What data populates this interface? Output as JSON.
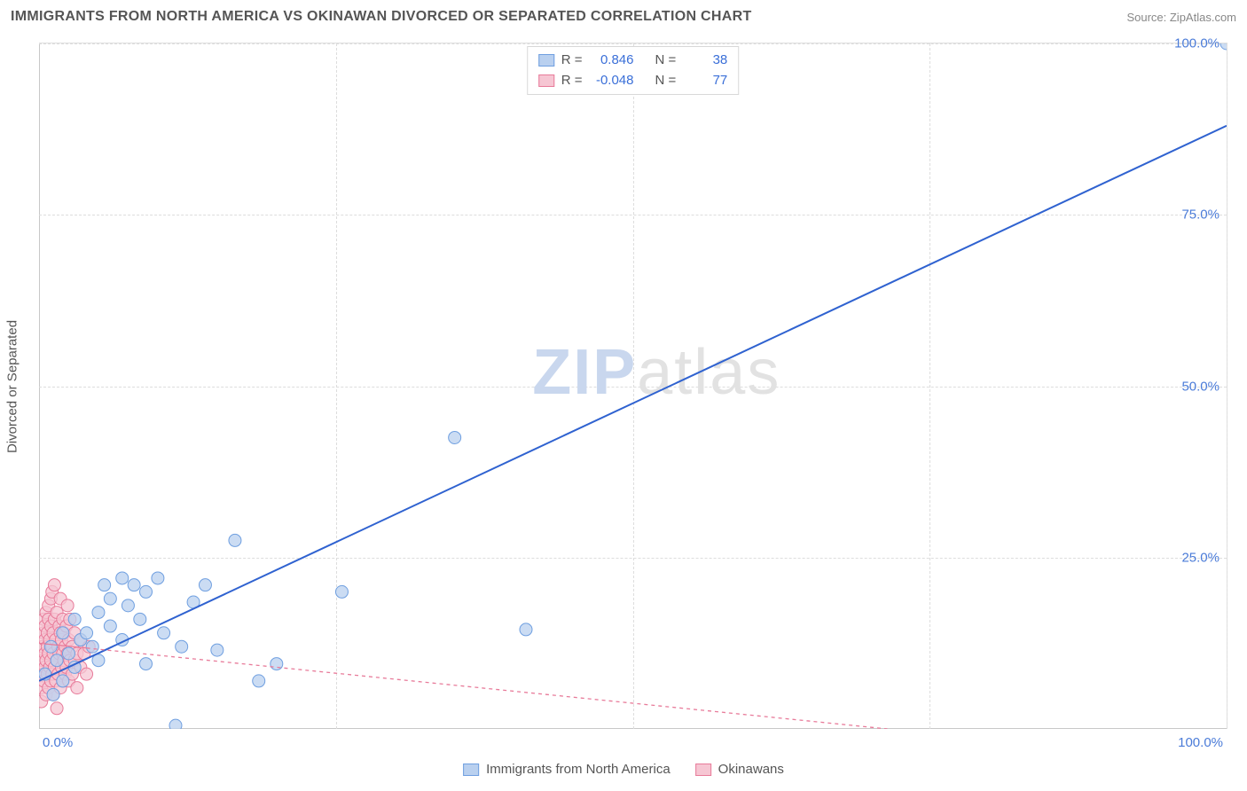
{
  "header": {
    "title": "IMMIGRANTS FROM NORTH AMERICA VS OKINAWAN DIVORCED OR SEPARATED CORRELATION CHART",
    "source": "Source: ZipAtlas.com"
  },
  "watermark": {
    "part1": "ZIP",
    "part2": "atlas"
  },
  "chart": {
    "type": "scatter",
    "y_label": "Divorced or Separated",
    "xlim": [
      0,
      100
    ],
    "ylim": [
      0,
      100
    ],
    "y_ticks": [
      25,
      50,
      75,
      100
    ],
    "y_tick_labels": [
      "25.0%",
      "50.0%",
      "75.0%",
      "100.0%"
    ],
    "x_tick_min_label": "0.0%",
    "x_tick_max_label": "100.0%",
    "x_grid_positions": [
      25,
      50,
      75,
      100
    ],
    "background_color": "#ffffff",
    "grid_color": "#dddddd",
    "axis_color": "#c8c8c8",
    "tick_label_color": "#4a7bd8",
    "tick_label_fontsize": 15,
    "series": [
      {
        "key": "immigrants",
        "label": "Immigrants from North America",
        "marker_color_fill": "#b9d0ef",
        "marker_color_stroke": "#6f9fe0",
        "marker_radius": 7,
        "marker_opacity": 0.75,
        "line_color": "#2f62d0",
        "line_width": 2,
        "line_dash": "none",
        "trend": {
          "x1": 0,
          "y1": 7,
          "x2": 100,
          "y2": 88
        },
        "R_label": "R =",
        "R_value": "0.846",
        "N_label": "N =",
        "N_value": "38",
        "points": [
          [
            0.5,
            8
          ],
          [
            1,
            12
          ],
          [
            1.2,
            5
          ],
          [
            1.5,
            10
          ],
          [
            2,
            14
          ],
          [
            2,
            7
          ],
          [
            2.5,
            11
          ],
          [
            3,
            16
          ],
          [
            3,
            9
          ],
          [
            3.5,
            13
          ],
          [
            4,
            14
          ],
          [
            4.5,
            12
          ],
          [
            5,
            17
          ],
          [
            5,
            10
          ],
          [
            5.5,
            21
          ],
          [
            6,
            15
          ],
          [
            6,
            19
          ],
          [
            7,
            22
          ],
          [
            7,
            13
          ],
          [
            7.5,
            18
          ],
          [
            8,
            21
          ],
          [
            8.5,
            16
          ],
          [
            9,
            20
          ],
          [
            9,
            9.5
          ],
          [
            10,
            22
          ],
          [
            10.5,
            14
          ],
          [
            11.5,
            0.5
          ],
          [
            12,
            12
          ],
          [
            13,
            18.5
          ],
          [
            14,
            21
          ],
          [
            15,
            11.5
          ],
          [
            16.5,
            27.5
          ],
          [
            18.5,
            7
          ],
          [
            20,
            9.5
          ],
          [
            25.5,
            20
          ],
          [
            35,
            42.5
          ],
          [
            41,
            14.5
          ],
          [
            100,
            100
          ]
        ]
      },
      {
        "key": "okinawans",
        "label": "Okinawans",
        "marker_color_fill": "#f6c6d3",
        "marker_color_stroke": "#e87b9a",
        "marker_radius": 7,
        "marker_opacity": 0.75,
        "line_color": "#e87b9a",
        "line_solid_end_x": 4,
        "line_width": 1.3,
        "line_dash": "4,4",
        "trend": {
          "x1": 0,
          "y1": 12.5,
          "x2": 100,
          "y2": -5
        },
        "R_label": "R =",
        "R_value": "-0.048",
        "N_label": "N =",
        "N_value": "77",
        "points": [
          [
            0.2,
            4
          ],
          [
            0.2,
            6
          ],
          [
            0.3,
            8
          ],
          [
            0.3,
            10
          ],
          [
            0.3,
            12
          ],
          [
            0.4,
            14
          ],
          [
            0.4,
            16
          ],
          [
            0.4,
            7
          ],
          [
            0.5,
            9
          ],
          [
            0.5,
            11
          ],
          [
            0.5,
            13
          ],
          [
            0.5,
            15
          ],
          [
            0.6,
            5
          ],
          [
            0.6,
            17
          ],
          [
            0.6,
            10
          ],
          [
            0.7,
            8
          ],
          [
            0.7,
            12
          ],
          [
            0.7,
            14
          ],
          [
            0.8,
            6
          ],
          [
            0.8,
            11
          ],
          [
            0.8,
            16
          ],
          [
            0.8,
            18
          ],
          [
            0.9,
            9
          ],
          [
            0.9,
            13
          ],
          [
            1.0,
            7
          ],
          [
            1.0,
            10
          ],
          [
            1.0,
            15
          ],
          [
            1.0,
            19
          ],
          [
            1.1,
            8
          ],
          [
            1.1,
            12
          ],
          [
            1.1,
            20
          ],
          [
            1.2,
            5
          ],
          [
            1.2,
            11
          ],
          [
            1.2,
            14
          ],
          [
            1.3,
            9
          ],
          [
            1.3,
            16
          ],
          [
            1.3,
            21
          ],
          [
            1.4,
            7
          ],
          [
            1.4,
            13
          ],
          [
            1.5,
            10
          ],
          [
            1.5,
            17
          ],
          [
            1.5,
            3
          ],
          [
            1.6,
            12
          ],
          [
            1.6,
            8
          ],
          [
            1.7,
            15
          ],
          [
            1.7,
            11
          ],
          [
            1.8,
            6
          ],
          [
            1.8,
            14
          ],
          [
            1.8,
            19
          ],
          [
            1.9,
            9
          ],
          [
            1.9,
            13
          ],
          [
            2.0,
            11
          ],
          [
            2.0,
            7
          ],
          [
            2.0,
            16
          ],
          [
            2.1,
            10
          ],
          [
            2.1,
            14
          ],
          [
            2.2,
            8
          ],
          [
            2.2,
            12
          ],
          [
            2.3,
            15
          ],
          [
            2.3,
            9
          ],
          [
            2.4,
            11
          ],
          [
            2.4,
            18
          ],
          [
            2.5,
            7
          ],
          [
            2.5,
            13
          ],
          [
            2.6,
            10
          ],
          [
            2.6,
            16
          ],
          [
            2.8,
            12
          ],
          [
            2.8,
            8
          ],
          [
            3.0,
            14
          ],
          [
            3.0,
            10
          ],
          [
            3.2,
            11
          ],
          [
            3.2,
            6
          ],
          [
            3.5,
            13
          ],
          [
            3.5,
            9
          ],
          [
            3.8,
            11
          ],
          [
            4.0,
            8
          ],
          [
            4.2,
            12
          ]
        ]
      }
    ]
  },
  "legend_top": {
    "border_color": "#d8d8d8",
    "label_color": "#555555",
    "value_color": "#3a6fd8"
  },
  "legend_bottom": {
    "text_color": "#555555"
  }
}
